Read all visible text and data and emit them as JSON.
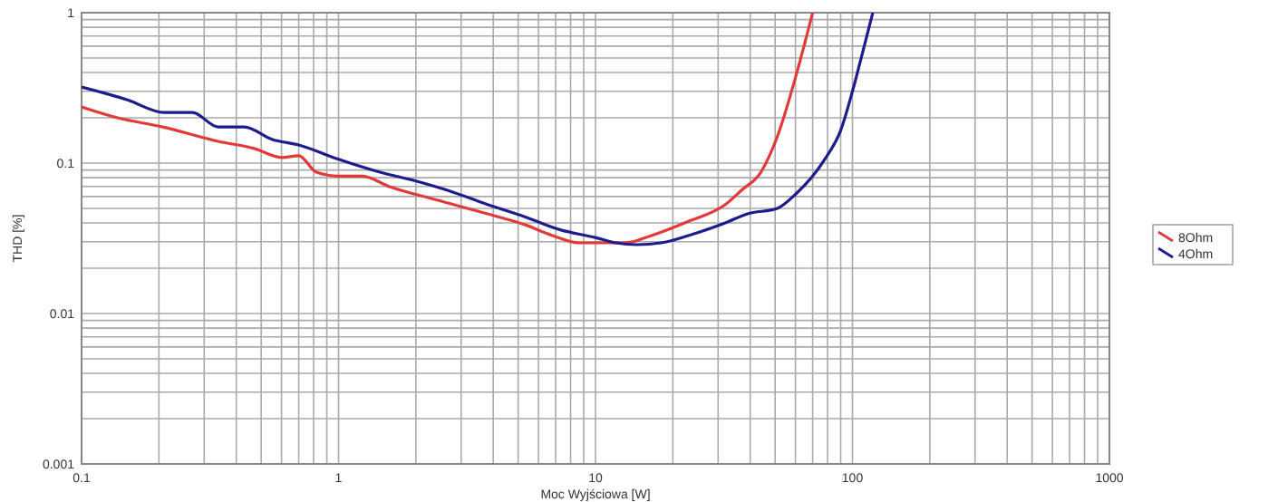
{
  "chart_data": {
    "type": "line",
    "xlabel": "Moc Wyjściowa [W]",
    "ylabel": "THD [%]",
    "log": "xy",
    "grid": true,
    "legend": "right",
    "line_style": "solid",
    "marker": "none",
    "xlim": [
      0.1,
      1000
    ],
    "ylim": [
      0.001,
      1
    ],
    "xticks": [
      0.1,
      {
        "value": 0.2,
        "label": null
      },
      {
        "value": 0.3,
        "label": null
      },
      {
        "value": 0.4,
        "label": null
      },
      {
        "value": 0.5,
        "label": null
      },
      {
        "value": 0.6,
        "label": null
      },
      {
        "value": 0.7,
        "label": null
      },
      {
        "value": 0.8,
        "label": null
      },
      {
        "value": 0.9,
        "label": null
      },
      1,
      {
        "value": 2,
        "label": null
      },
      {
        "value": 3,
        "label": null
      },
      {
        "value": 4,
        "label": null
      },
      {
        "value": 5,
        "label": null
      },
      {
        "value": 6,
        "label": null
      },
      {
        "value": 7,
        "label": null
      },
      {
        "value": 8,
        "label": null
      },
      {
        "value": 9,
        "label": null
      },
      10,
      {
        "value": 20,
        "label": null
      },
      {
        "value": 30,
        "label": null
      },
      {
        "value": 40,
        "label": null
      },
      {
        "value": 50,
        "label": null
      },
      {
        "value": 60,
        "label": null
      },
      {
        "value": 70,
        "label": null
      },
      {
        "value": 80,
        "label": null
      },
      {
        "value": 90,
        "label": null
      },
      100,
      {
        "value": 200,
        "label": null
      },
      {
        "value": 300,
        "label": null
      },
      {
        "value": 400,
        "label": null
      },
      {
        "value": 500,
        "label": null
      },
      {
        "value": 600,
        "label": null
      },
      {
        "value": 700,
        "label": null
      },
      {
        "value": 800,
        "label": null
      },
      {
        "value": 900,
        "label": null
      },
      1000
    ],
    "yticks": [
      0.001,
      {
        "value": 0.002,
        "label": null
      },
      {
        "value": 0.003,
        "label": null
      },
      {
        "value": 0.004,
        "label": null
      },
      {
        "value": 0.005,
        "label": null
      },
      {
        "value": 0.006,
        "label": null
      },
      {
        "value": 0.007,
        "label": null
      },
      {
        "value": 0.008,
        "label": null
      },
      {
        "value": 0.009,
        "label": null
      },
      0.01,
      {
        "value": 0.02,
        "label": null
      },
      {
        "value": 0.03,
        "label": null
      },
      {
        "value": 0.04,
        "label": null
      },
      {
        "value": 0.05,
        "label": null
      },
      {
        "value": 0.06,
        "label": null
      },
      {
        "value": 0.07,
        "label": null
      },
      {
        "value": 0.08,
        "label": null
      },
      {
        "value": 0.09,
        "label": null
      },
      0.1,
      {
        "value": 0.2,
        "label": null
      },
      {
        "value": 0.3,
        "label": null
      },
      {
        "value": 0.4,
        "label": null
      },
      {
        "value": 0.5,
        "label": null
      },
      {
        "value": 0.6,
        "label": null
      },
      {
        "value": 0.7,
        "label": null
      },
      {
        "value": 0.8,
        "label": null
      },
      {
        "value": 0.9,
        "label": null
      },
      1
    ],
    "series": [
      {
        "name": "8Ohm",
        "color": "#e03a3a",
        "x": [
          0.1,
          0.138,
          0.207,
          0.337,
          0.47,
          0.6,
          0.7,
          0.82,
          1,
          1.24,
          1.57,
          2.4,
          3.8,
          5.3,
          6.8,
          8.6,
          10,
          13,
          16.5,
          23,
          32,
          37,
          44,
          51,
          60,
          70
        ],
        "values": [
          0.236,
          0.2,
          0.174,
          0.14,
          0.125,
          0.109,
          0.112,
          0.087,
          0.082,
          0.082,
          0.07,
          0.057,
          0.046,
          0.039,
          0.033,
          0.0295,
          0.0295,
          0.0295,
          0.033,
          0.041,
          0.053,
          0.066,
          0.087,
          0.15,
          0.37,
          1
        ]
      },
      {
        "name": "4Ohm",
        "color": "#1c1c8c",
        "x": [
          0.1,
          0.15,
          0.21,
          0.27,
          0.34,
          0.43,
          0.55,
          0.7,
          1,
          1.45,
          2,
          2.8,
          3.8,
          5.3,
          7.3,
          10,
          12,
          14.5,
          18,
          23,
          32,
          39,
          51,
          60,
          78,
          90,
          100,
          110,
          120
        ],
        "values": [
          0.32,
          0.264,
          0.217,
          0.217,
          0.174,
          0.174,
          0.144,
          0.132,
          0.106,
          0.087,
          0.076,
          0.064,
          0.053,
          0.044,
          0.036,
          0.032,
          0.0295,
          0.0287,
          0.0295,
          0.033,
          0.04,
          0.046,
          0.05,
          0.062,
          0.106,
          0.165,
          0.3,
          0.56,
          1
        ]
      }
    ]
  }
}
